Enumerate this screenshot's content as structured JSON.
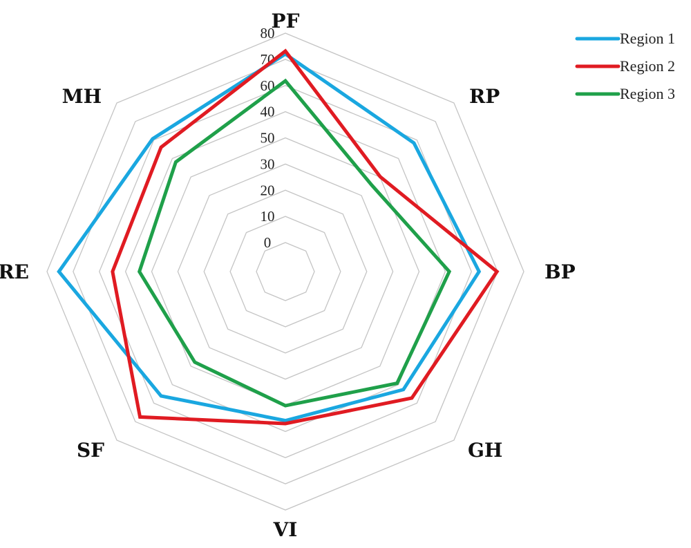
{
  "chart_data": {
    "type": "radar",
    "axes": [
      "PF",
      "RP",
      "BP",
      "GH",
      "VI",
      "SF",
      "RE",
      "MH"
    ],
    "tick_labels": [
      "0",
      "10",
      "20",
      "30",
      "50",
      "40",
      "60",
      "70",
      "80"
    ],
    "range": [
      0,
      80
    ],
    "gridlines": true,
    "legend_position": "top-right",
    "series": [
      {
        "name": "Region 1",
        "color": "#1aa7e0",
        "values": [
          73,
          61,
          65,
          56,
          50,
          59,
          76,
          63
        ]
      },
      {
        "name": "Region 2",
        "color": "#e01b22",
        "values": [
          74,
          45,
          71,
          60,
          51,
          69,
          58,
          59
        ]
      },
      {
        "name": "Region 3",
        "color": "#1fa04a",
        "values": [
          64,
          41,
          55,
          53,
          45,
          43,
          49,
          52
        ]
      }
    ]
  }
}
